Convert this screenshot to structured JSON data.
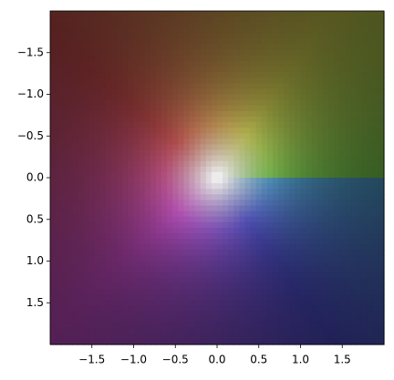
{
  "chart_data": {
    "type": "image",
    "xlim": [
      -2,
      2
    ],
    "ylim": [
      2,
      -2
    ],
    "xticks": [
      {
        "value": -1.5,
        "label": "−1.5"
      },
      {
        "value": -1,
        "label": "−1.0"
      },
      {
        "value": -0.5,
        "label": "−0.5"
      },
      {
        "value": 0,
        "label": "0.0"
      },
      {
        "value": 0.5,
        "label": "0.5"
      },
      {
        "value": 1,
        "label": "1.0"
      },
      {
        "value": 1.5,
        "label": "1.5"
      }
    ],
    "yticks": [
      {
        "value": -1.5,
        "label": "−1.5"
      },
      {
        "value": -1,
        "label": "−1.0"
      },
      {
        "value": -0.5,
        "label": "−0.5"
      },
      {
        "value": 0,
        "label": "0.0"
      },
      {
        "value": 0.5,
        "label": "0.5"
      },
      {
        "value": 1,
        "label": "1.0"
      },
      {
        "value": 1.5,
        "label": "1.5"
      }
    ]
  }
}
